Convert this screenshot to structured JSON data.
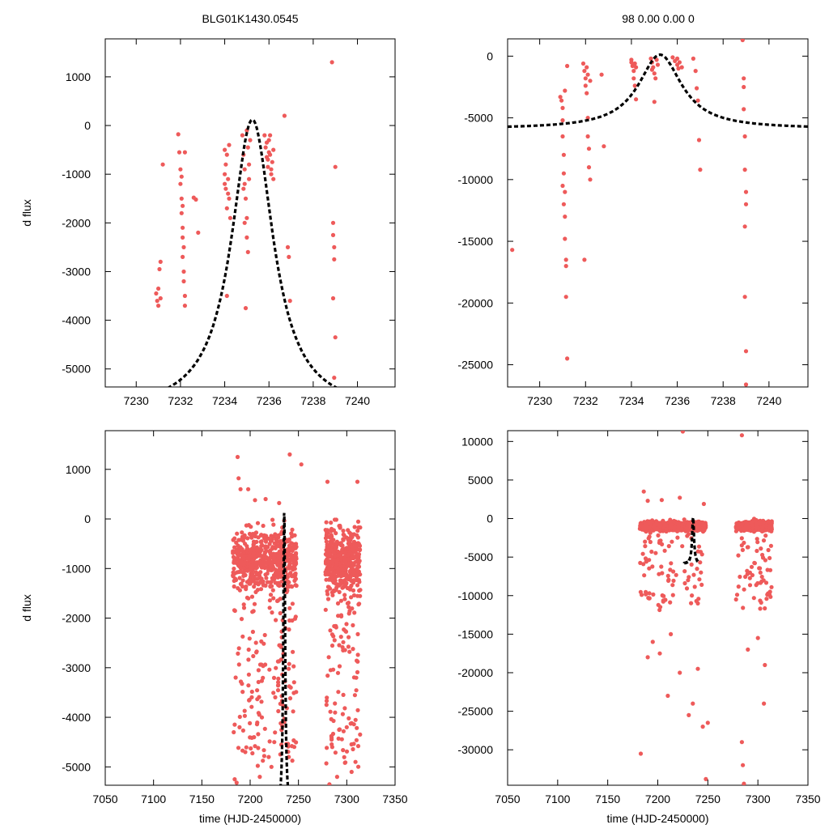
{
  "header": {
    "object_id": "BLG01K1430.0545",
    "params": "98  0.00  0.00  0"
  },
  "colors": {
    "points": "#ee5a5a",
    "model": "#000000"
  },
  "chart_data": [
    {
      "id": "top-left",
      "type": "scatter",
      "title": "BLG01K1430.0545",
      "xlabel": "",
      "ylabel": "d flux",
      "xlim": [
        7228.6,
        7241.7
      ],
      "ylim": [
        -5370,
        1780
      ],
      "xticks": [
        7230,
        7232,
        7234,
        7236,
        7238,
        7240
      ],
      "yticks": [
        1000,
        0,
        -1000,
        -2000,
        -3000,
        -4000,
        -5000
      ],
      "model": {
        "t0": 7235.25,
        "peak": 120,
        "baseline": -5890,
        "width": 1.15
      },
      "points": [
        [
          7230.9,
          -3450
        ],
        [
          7230.95,
          -3600
        ],
        [
          7231.0,
          -3700
        ],
        [
          7231.0,
          -3350
        ],
        [
          7231.05,
          -2950
        ],
        [
          7231.1,
          -2800
        ],
        [
          7231.1,
          -3550
        ],
        [
          7231.2,
          -800
        ],
        [
          7231.9,
          -180
        ],
        [
          7231.95,
          -550
        ],
        [
          7232.0,
          -900
        ],
        [
          7232.0,
          -1200
        ],
        [
          7232.05,
          -1500
        ],
        [
          7232.05,
          -1800
        ],
        [
          7232.1,
          -2100
        ],
        [
          7232.1,
          -2300
        ],
        [
          7232.1,
          -2700
        ],
        [
          7232.15,
          -3000
        ],
        [
          7232.15,
          -3200
        ],
        [
          7232.2,
          -3500
        ],
        [
          7232.2,
          -3700
        ],
        [
          7232.05,
          -1050
        ],
        [
          7232.1,
          -1650
        ],
        [
          7232.15,
          -2500
        ],
        [
          7232.2,
          -550
        ],
        [
          7232.6,
          -1480
        ],
        [
          7232.7,
          -1520
        ],
        [
          7232.8,
          -2200
        ],
        [
          7234.0,
          -500
        ],
        [
          7234.0,
          -1000
        ],
        [
          7234.05,
          -1300
        ],
        [
          7234.1,
          -1700
        ],
        [
          7234.1,
          -3500
        ],
        [
          7234.05,
          -800
        ],
        [
          7234.15,
          -1100
        ],
        [
          7234.2,
          -1500
        ],
        [
          7234.2,
          -400
        ],
        [
          7234.25,
          -1900
        ],
        [
          7234.0,
          -1200
        ],
        [
          7234.1,
          -600
        ],
        [
          7234.15,
          -1400
        ],
        [
          7234.8,
          -200
        ],
        [
          7234.85,
          -600
        ],
        [
          7234.9,
          -900
        ],
        [
          7234.9,
          -1200
        ],
        [
          7234.95,
          -1500
        ],
        [
          7235.0,
          -1900
        ],
        [
          7235.0,
          -2300
        ],
        [
          7235.05,
          -2600
        ],
        [
          7234.95,
          -3750
        ],
        [
          7234.85,
          -1300
        ],
        [
          7235.0,
          -100
        ],
        [
          7235.05,
          -450
        ],
        [
          7235.1,
          -800
        ],
        [
          7235.1,
          -1100
        ],
        [
          7235.15,
          -300
        ],
        [
          7234.9,
          -2000
        ],
        [
          7235.8,
          -200
        ],
        [
          7235.85,
          -450
        ],
        [
          7235.9,
          -650
        ],
        [
          7235.95,
          -850
        ],
        [
          7236.0,
          -300
        ],
        [
          7236.05,
          -600
        ],
        [
          7236.1,
          -1000
        ],
        [
          7236.15,
          -750
        ],
        [
          7236.2,
          -500
        ],
        [
          7235.9,
          -350
        ],
        [
          7236.0,
          -550
        ],
        [
          7236.1,
          -900
        ],
        [
          7236.05,
          -200
        ],
        [
          7235.95,
          -700
        ],
        [
          7236.2,
          -1100
        ],
        [
          7236.7,
          200
        ],
        [
          7236.85,
          -2500
        ],
        [
          7236.9,
          -2700
        ],
        [
          7236.95,
          -3600
        ],
        [
          7238.85,
          1300
        ],
        [
          7238.9,
          -2000
        ],
        [
          7238.9,
          -2250
        ],
        [
          7238.95,
          -2500
        ],
        [
          7238.95,
          -2750
        ],
        [
          7238.9,
          -3550
        ],
        [
          7239.0,
          -4350
        ],
        [
          7238.95,
          -5180
        ],
        [
          7239.0,
          -850
        ]
      ]
    },
    {
      "id": "top-right",
      "type": "scatter",
      "title": "98  0.00  0.00  0",
      "xlabel": "",
      "ylabel": "",
      "xlim": [
        7228.6,
        7241.7
      ],
      "ylim": [
        -26800,
        1400
      ],
      "xticks": [
        7230,
        7232,
        7234,
        7236,
        7238,
        7240
      ],
      "yticks": [
        0,
        -5000,
        -10000,
        -15000,
        -20000,
        -25000
      ],
      "model": {
        "t0": 7235.25,
        "peak": 120,
        "baseline": -5890,
        "width": 1.15
      },
      "points": [
        [
          7228.8,
          -15700
        ],
        [
          7230.9,
          -3300
        ],
        [
          7230.95,
          -3600
        ],
        [
          7231.0,
          -4200
        ],
        [
          7231.0,
          -5200
        ],
        [
          7231.0,
          -6500
        ],
        [
          7231.05,
          -8000
        ],
        [
          7231.05,
          -9500
        ],
        [
          7231.1,
          -11000
        ],
        [
          7231.1,
          -13000
        ],
        [
          7231.1,
          -14800
        ],
        [
          7231.15,
          -16500
        ],
        [
          7231.15,
          -17000
        ],
        [
          7231.15,
          -19500
        ],
        [
          7231.2,
          -24500
        ],
        [
          7231.2,
          -800
        ],
        [
          7231.0,
          -10500
        ],
        [
          7231.05,
          -12000
        ],
        [
          7231.1,
          -2800
        ],
        [
          7231.9,
          -600
        ],
        [
          7231.95,
          -1200
        ],
        [
          7232.0,
          -1800
        ],
        [
          7232.0,
          -2400
        ],
        [
          7232.05,
          -3000
        ],
        [
          7232.1,
          -5000
        ],
        [
          7232.1,
          -6500
        ],
        [
          7232.15,
          -7500
        ],
        [
          7232.15,
          -9000
        ],
        [
          7232.2,
          -10000
        ],
        [
          7231.95,
          -16500
        ],
        [
          7232.1,
          -1500
        ],
        [
          7232.2,
          -2000
        ],
        [
          7232.05,
          -900
        ],
        [
          7232.7,
          -1500
        ],
        [
          7232.8,
          -7300
        ],
        [
          7234.0,
          -500
        ],
        [
          7234.05,
          -800
        ],
        [
          7234.1,
          -1200
        ],
        [
          7234.1,
          -1800
        ],
        [
          7234.15,
          -2400
        ],
        [
          7234.2,
          -3500
        ],
        [
          7234.0,
          -300
        ],
        [
          7234.15,
          -600
        ],
        [
          7234.2,
          -900
        ],
        [
          7234.85,
          -200
        ],
        [
          7234.9,
          -500
        ],
        [
          7234.95,
          -900
        ],
        [
          7235.0,
          -1400
        ],
        [
          7235.05,
          -1800
        ],
        [
          7235.0,
          -3700
        ],
        [
          7235.1,
          -300
        ],
        [
          7235.15,
          -700
        ],
        [
          7234.9,
          -1100
        ],
        [
          7235.8,
          -100
        ],
        [
          7235.9,
          -400
        ],
        [
          7236.0,
          -700
        ],
        [
          7236.05,
          -1000
        ],
        [
          7236.1,
          -500
        ],
        [
          7236.2,
          -900
        ],
        [
          7236.0,
          -200
        ],
        [
          7236.7,
          -200
        ],
        [
          7236.8,
          -1200
        ],
        [
          7236.85,
          -2600
        ],
        [
          7236.9,
          -3600
        ],
        [
          7236.95,
          -6800
        ],
        [
          7237.0,
          -9200
        ],
        [
          7238.85,
          1300
        ],
        [
          7238.9,
          -2500
        ],
        [
          7238.9,
          -4300
        ],
        [
          7238.95,
          -6500
        ],
        [
          7238.95,
          -9200
        ],
        [
          7239.0,
          -11000
        ],
        [
          7239.0,
          -12000
        ],
        [
          7238.95,
          -13800
        ],
        [
          7238.95,
          -19500
        ],
        [
          7239.0,
          -23900
        ],
        [
          7239.0,
          -26600
        ],
        [
          7238.9,
          -1800
        ]
      ]
    },
    {
      "id": "bottom-left",
      "type": "scatter",
      "title": "",
      "xlabel": "time (HJD-2450000)",
      "ylabel": "d flux",
      "xlim": [
        7050,
        7350
      ],
      "ylim": [
        -5370,
        1780
      ],
      "xticks": [
        7050,
        7100,
        7150,
        7200,
        7250,
        7300,
        7350
      ],
      "yticks": [
        1000,
        0,
        -1000,
        -2000,
        -3000,
        -4000,
        -5000
      ],
      "model": {
        "t0": 7235.25,
        "peak": 120,
        "baseline": -5890,
        "width": 1.15,
        "xrange": [
          7226.5,
          7241.0
        ]
      },
      "bands": [
        [
          7182,
          7197,
          1.0
        ],
        [
          7197,
          7212,
          1.4
        ],
        [
          7212,
          7228,
          1.0
        ],
        [
          7228,
          7248,
          1.4
        ],
        [
          7278,
          7314,
          1.6
        ]
      ],
      "points": [
        [
          7187,
          1250
        ],
        [
          7188,
          820
        ],
        [
          7190,
          600
        ],
        [
          7198,
          600
        ],
        [
          7205,
          380
        ],
        [
          7216,
          400
        ],
        [
          7230,
          320
        ],
        [
          7241,
          1300
        ],
        [
          7253,
          1100
        ],
        [
          7280,
          750
        ],
        [
          7311,
          750
        ],
        [
          7184,
          -5250
        ],
        [
          7186,
          -5320
        ],
        [
          7210,
          -5200
        ],
        [
          7222,
          -5000
        ],
        [
          7282,
          -5350
        ],
        [
          7290,
          -5200
        ],
        [
          7305,
          -5100
        ],
        [
          7183,
          -4300
        ],
        [
          7195,
          -4700
        ],
        [
          7204,
          -4400
        ],
        [
          7225,
          -4500
        ],
        [
          7240,
          -4800
        ],
        [
          7285,
          -4600
        ],
        [
          7300,
          -4200
        ],
        [
          7309,
          -4900
        ]
      ]
    },
    {
      "id": "bottom-right",
      "type": "scatter",
      "title": "",
      "xlabel": "time (HJD-2450000)",
      "ylabel": "",
      "xlim": [
        7050,
        7350
      ],
      "ylim": [
        -34600,
        11400
      ],
      "xticks": [
        7050,
        7100,
        7150,
        7200,
        7250,
        7300,
        7350
      ],
      "yticks": [
        10000,
        5000,
        0,
        -5000,
        -10000,
        -15000,
        -20000,
        -25000,
        -30000
      ],
      "model": {
        "t0": 7235.25,
        "peak": 120,
        "baseline": -5890,
        "width": 1.15,
        "xrange": [
          7226.5,
          7241.0
        ]
      },
      "bands": [
        [
          7182,
          7197,
          1.0
        ],
        [
          7197,
          7212,
          1.4
        ],
        [
          7212,
          7228,
          1.0
        ],
        [
          7228,
          7248,
          1.4
        ],
        [
          7278,
          7314,
          1.6
        ]
      ],
      "points": [
        [
          7225,
          11300
        ],
        [
          7284,
          10800
        ],
        [
          7186,
          3500
        ],
        [
          7190,
          2300
        ],
        [
          7204,
          2400
        ],
        [
          7222,
          2700
        ],
        [
          7246,
          1900
        ],
        [
          7183,
          -30500
        ],
        [
          7284,
          -29000
        ],
        [
          7285,
          -32000
        ],
        [
          7286,
          -34400
        ],
        [
          7248,
          -33800
        ],
        [
          7245,
          -27000
        ],
        [
          7231,
          -25500
        ],
        [
          7210,
          -23000
        ],
        [
          7235,
          -24000
        ],
        [
          7250,
          -26500
        ],
        [
          7306,
          -24000
        ],
        [
          7190,
          -18000
        ],
        [
          7195,
          -16000
        ],
        [
          7202,
          -17500
        ],
        [
          7213,
          -15000
        ],
        [
          7222,
          -20000
        ],
        [
          7240,
          -19500
        ],
        [
          7290,
          -17000
        ],
        [
          7300,
          -15500
        ],
        [
          7307,
          -19000
        ]
      ]
    }
  ]
}
